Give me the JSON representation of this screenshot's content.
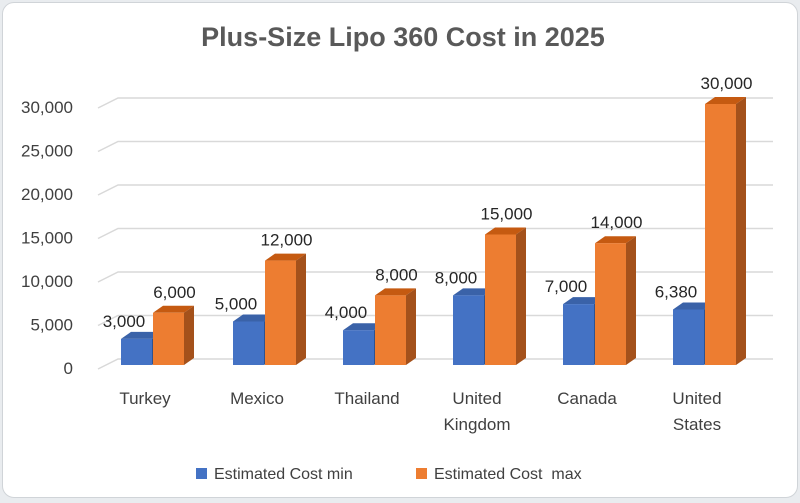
{
  "chart_data": {
    "type": "bar",
    "title": "Plus-Size Lipo 360 Cost in 2025",
    "categories": [
      [
        "Turkey"
      ],
      [
        "Mexico"
      ],
      [
        "Thailand"
      ],
      [
        "United",
        "Kingdom"
      ],
      [
        "Canada"
      ],
      [
        "United",
        "States"
      ]
    ],
    "series": [
      {
        "name": "Estimated Cost min",
        "values": [
          3000,
          5000,
          4000,
          8000,
          7000,
          6380
        ],
        "labels": [
          "3,000",
          "5,000",
          "4,000",
          "8,000",
          "7,000",
          "6,380"
        ],
        "color": "#4472c4"
      },
      {
        "name": "Estimated Cost  max",
        "values": [
          6000,
          12000,
          8000,
          15000,
          14000,
          30000
        ],
        "labels": [
          "6,000",
          "12,000",
          "8,000",
          "15,000",
          "14,000",
          "30,000"
        ],
        "color": "#ed7d31"
      }
    ],
    "yticks": [
      "0",
      "5,000",
      "10,000",
      "15,000",
      "20,000",
      "25,000",
      "30,000"
    ],
    "ylim": [
      0,
      30000
    ],
    "grid": true,
    "legend": "bottom",
    "style": "3d-clustered-column"
  }
}
